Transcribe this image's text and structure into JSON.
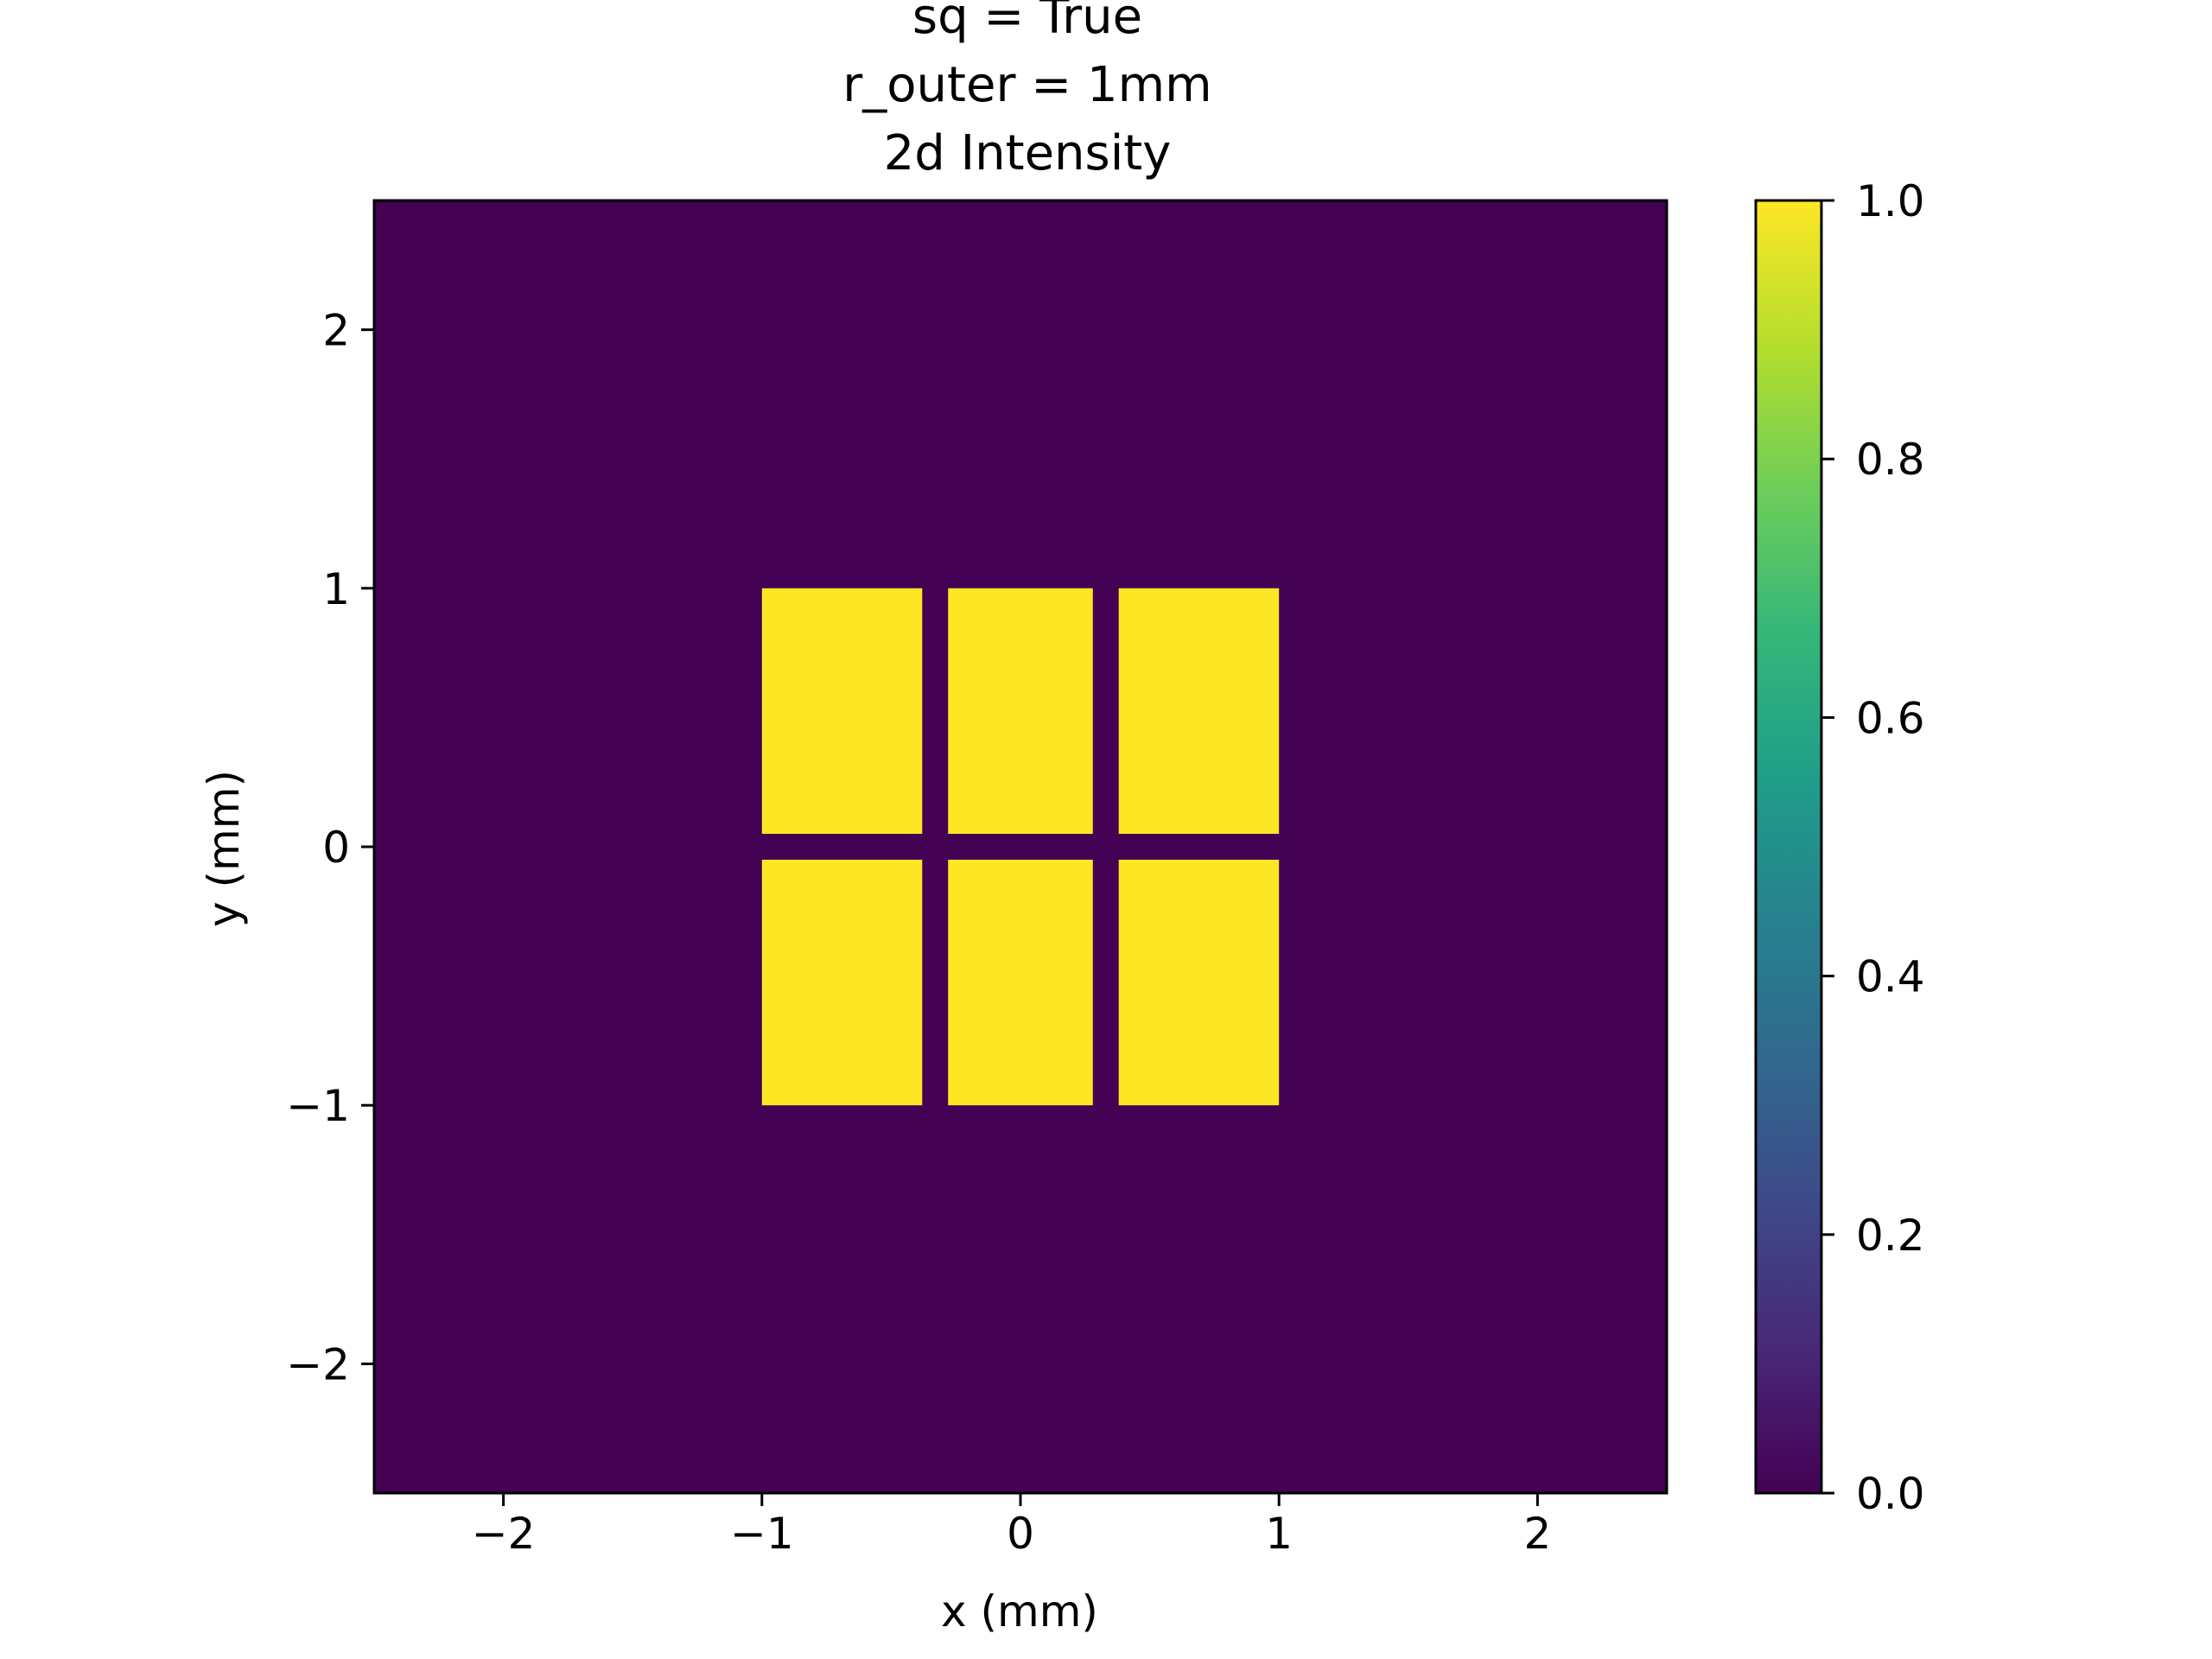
{
  "chart_data": {
    "type": "heatmap",
    "title_lines": [
      "sq = True",
      "r_outer = 1mm",
      "2d Intensity"
    ],
    "xlabel": "x (mm)",
    "ylabel": "y (mm)",
    "xlim": [
      -2.5,
      2.5
    ],
    "ylim": [
      -2.5,
      2.5
    ],
    "xticks": [
      -2,
      -1,
      0,
      1,
      2
    ],
    "yticks": [
      -2,
      -1,
      0,
      1,
      2
    ],
    "xtick_labels": [
      "−2",
      "−1",
      "0",
      "1",
      "2"
    ],
    "ytick_labels": [
      "−2",
      "−1",
      "0",
      "1",
      "2"
    ],
    "background_value": 0.0,
    "regions": [
      {
        "x": [
          -1.0,
          -0.38
        ],
        "y": [
          0.05,
          1.0
        ],
        "value": 1.0
      },
      {
        "x": [
          -0.28,
          0.28
        ],
        "y": [
          0.05,
          1.0
        ],
        "value": 1.0
      },
      {
        "x": [
          0.38,
          1.0
        ],
        "y": [
          0.05,
          1.0
        ],
        "value": 1.0
      },
      {
        "x": [
          -1.0,
          -0.38
        ],
        "y": [
          -1.0,
          -0.05
        ],
        "value": 1.0
      },
      {
        "x": [
          -0.28,
          0.28
        ],
        "y": [
          -1.0,
          -0.05
        ],
        "value": 1.0
      },
      {
        "x": [
          0.38,
          1.0
        ],
        "y": [
          -1.0,
          -0.05
        ],
        "value": 1.0
      }
    ],
    "colorbar": {
      "range": [
        0.0,
        1.0
      ],
      "ticks": [
        0.0,
        0.2,
        0.4,
        0.6,
        0.8,
        1.0
      ],
      "tick_labels": [
        "0.0",
        "0.2",
        "0.4",
        "0.6",
        "0.8",
        "1.0"
      ],
      "colormap": "viridis",
      "stops": [
        "#440154",
        "#482878",
        "#3e4989",
        "#31688e",
        "#26828e",
        "#1f9e89",
        "#35b779",
        "#6ece58",
        "#b5de2b",
        "#fde725"
      ]
    },
    "grid": false
  }
}
